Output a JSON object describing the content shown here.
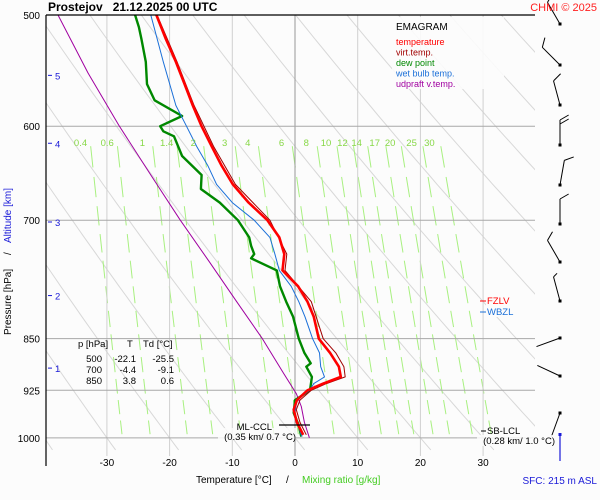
{
  "chart_data": {
    "type": "line",
    "title": "Prostejov   21.12.2025 00 UTC",
    "copyright": "CHMI © 2025",
    "diagram_type": "EMAGRAM",
    "xlabel": "Temperature [°C]",
    "xlabel_separator": "/",
    "xlabel2": "Mixing ratio [g/kg]",
    "ylabel": "Pressure [hPa]",
    "ylabel_separator": "/",
    "ylabel2": "Altitude [km]",
    "xlim": [
      -40,
      38
    ],
    "ylim": [
      1000,
      500
    ],
    "x_ticks": [
      -30,
      -20,
      -10,
      0,
      10,
      20,
      30
    ],
    "pressure_ticks": [
      500,
      600,
      700,
      850,
      925,
      1000
    ],
    "altitude_ticks": [
      {
        "km": 5,
        "p": 552
      },
      {
        "km": 4,
        "p": 617
      },
      {
        "km": 3,
        "p": 702
      },
      {
        "km": 2,
        "p": 792
      },
      {
        "km": 1,
        "p": 892
      }
    ],
    "mixing_ratio_labels": [
      "0.4",
      "0.6",
      "1",
      "1.4",
      "2",
      "3",
      "4",
      "6",
      "8",
      "10",
      "12",
      "14",
      "17",
      "20",
      "25",
      "30"
    ],
    "legend": [
      {
        "label": "temperature",
        "color": "#ff0000"
      },
      {
        "label": "virt.temp.",
        "color": "#a00000"
      },
      {
        "label": "dew point",
        "color": "#008800"
      },
      {
        "label": "wet bulb temp.",
        "color": "#1a6fd8"
      },
      {
        "label": "udpraft v.temp.",
        "color": "#a000a0"
      }
    ],
    "legend_position": "top-right",
    "series": [
      {
        "name": "temperature",
        "points": [
          [
            500,
            -22.1
          ],
          [
            520,
            -20.6
          ],
          [
            540,
            -19.0
          ],
          [
            560,
            -17.6
          ],
          [
            580,
            -16.3
          ],
          [
            600,
            -14.9
          ],
          [
            620,
            -13.3
          ],
          [
            640,
            -11.7
          ],
          [
            660,
            -9.9
          ],
          [
            680,
            -7.4
          ],
          [
            700,
            -4.4
          ],
          [
            720,
            -2.5
          ],
          [
            740,
            -1.7
          ],
          [
            760,
            -2.0
          ],
          [
            780,
            0.5
          ],
          [
            800,
            2.0
          ],
          [
            820,
            3.0
          ],
          [
            850,
            3.8
          ],
          [
            870,
            5.6
          ],
          [
            890,
            7.0
          ],
          [
            905,
            7.3
          ],
          [
            915,
            4.5
          ],
          [
            925,
            2.0
          ],
          [
            940,
            0.3
          ],
          [
            955,
            -0.2
          ],
          [
            975,
            0.3
          ],
          [
            995,
            1.3
          ]
        ]
      },
      {
        "name": "virt.temp.",
        "points": [
          [
            500,
            -22.0
          ],
          [
            540,
            -18.8
          ],
          [
            580,
            -16.1
          ],
          [
            620,
            -13.0
          ],
          [
            660,
            -9.5
          ],
          [
            700,
            -4.0
          ],
          [
            740,
            -1.3
          ],
          [
            760,
            -1.6
          ],
          [
            800,
            2.6
          ],
          [
            850,
            4.5
          ],
          [
            870,
            6.5
          ],
          [
            890,
            7.8
          ],
          [
            905,
            8.0
          ],
          [
            915,
            5.0
          ],
          [
            925,
            2.6
          ],
          [
            940,
            0.8
          ],
          [
            955,
            0.2
          ],
          [
            975,
            0.8
          ],
          [
            995,
            1.8
          ]
        ]
      },
      {
        "name": "dew point",
        "points": [
          [
            500,
            -25.5
          ],
          [
            510,
            -24.9
          ],
          [
            520,
            -24.5
          ],
          [
            540,
            -23.8
          ],
          [
            560,
            -23.6
          ],
          [
            575,
            -22.4
          ],
          [
            590,
            -18.0
          ],
          [
            600,
            -21.5
          ],
          [
            605,
            -21.0
          ],
          [
            610,
            -19.3
          ],
          [
            630,
            -18.0
          ],
          [
            650,
            -14.9
          ],
          [
            665,
            -15.0
          ],
          [
            680,
            -12.0
          ],
          [
            700,
            -9.1
          ],
          [
            720,
            -7.3
          ],
          [
            730,
            -7.0
          ],
          [
            740,
            -6.5
          ],
          [
            745,
            -7.0
          ],
          [
            760,
            -2.9
          ],
          [
            780,
            -2.4
          ],
          [
            800,
            -1.4
          ],
          [
            820,
            -0.3
          ],
          [
            850,
            0.6
          ],
          [
            870,
            1.5
          ],
          [
            885,
            2.5
          ],
          [
            890,
            1.8
          ],
          [
            905,
            2.7
          ],
          [
            925,
            2.4
          ],
          [
            940,
            0.0
          ],
          [
            960,
            -0.2
          ],
          [
            980,
            0.6
          ],
          [
            998,
            1.0
          ]
        ]
      },
      {
        "name": "wet bulb temp.",
        "points": [
          [
            500,
            -23.0
          ],
          [
            540,
            -21.0
          ],
          [
            580,
            -19.0
          ],
          [
            600,
            -17.3
          ],
          [
            620,
            -15.7
          ],
          [
            640,
            -13.9
          ],
          [
            660,
            -12.5
          ],
          [
            680,
            -10.0
          ],
          [
            700,
            -6.5
          ],
          [
            720,
            -4.0
          ],
          [
            740,
            -3.2
          ],
          [
            760,
            -2.5
          ],
          [
            780,
            -0.6
          ],
          [
            800,
            0.6
          ],
          [
            820,
            1.6
          ],
          [
            850,
            2.8
          ],
          [
            870,
            3.9
          ],
          [
            890,
            4.1
          ],
          [
            905,
            4.7
          ],
          [
            915,
            3.0
          ],
          [
            925,
            2.3
          ],
          [
            940,
            0.3
          ],
          [
            960,
            0.0
          ],
          [
            980,
            0.5
          ],
          [
            998,
            1.1
          ]
        ]
      },
      {
        "name": "udpraft v.temp.",
        "points": [
          [
            500,
            -37.8
          ],
          [
            550,
            -33.0
          ],
          [
            600,
            -28.0
          ],
          [
            650,
            -23.0
          ],
          [
            700,
            -18.3
          ],
          [
            750,
            -13.6
          ],
          [
            800,
            -9.3
          ],
          [
            850,
            -5.2
          ],
          [
            900,
            -1.8
          ],
          [
            930,
            0.2
          ],
          [
            950,
            1.0
          ],
          [
            975,
            1.5
          ],
          [
            1000,
            2.3
          ]
        ]
      }
    ],
    "table": {
      "headers": [
        "p [hPa]",
        "T",
        "Td [°C]"
      ],
      "rows": [
        [
          "500",
          "-22.1",
          "-25.5"
        ],
        [
          "700",
          "-4.4",
          "-9.1"
        ],
        [
          "850",
          "3.8",
          "0.6"
        ]
      ]
    },
    "level_markers": [
      {
        "label": "FZLV",
        "color": "#ff0000",
        "p": 790
      },
      {
        "label": "WBZL",
        "color": "#1a6fd8",
        "p": 805
      }
    ],
    "annotations": [
      {
        "name": "ML-CCL",
        "label": "ML-CCL",
        "detail": "(0.35 km/ 0.7 °C)",
        "p": 968
      },
      {
        "name": "SB-LCL",
        "label": "SB-LCL",
        "detail": "(0.28 km/ 1.0 °C)",
        "p": 975
      }
    ],
    "wind_barbs": [
      {
        "p": 510,
        "dir": 330,
        "speed": 5
      },
      {
        "p": 545,
        "dir": 315,
        "speed": 10
      },
      {
        "p": 585,
        "dir": 345,
        "speed": 10
      },
      {
        "p": 625,
        "dir": 360,
        "speed": 20
      },
      {
        "p": 665,
        "dir": 10,
        "speed": 10
      },
      {
        "p": 705,
        "dir": 360,
        "speed": 10
      },
      {
        "p": 750,
        "dir": 330,
        "speed": 10
      },
      {
        "p": 795,
        "dir": 345,
        "speed": 5
      },
      {
        "p": 850,
        "dir": 250,
        "speed": 0
      },
      {
        "p": 900,
        "dir": 295,
        "speed": 0
      },
      {
        "p": 955,
        "dir": 200,
        "speed": 0
      }
    ],
    "surface_label": "SFC: 215 m ASL",
    "surface_pressure": 993
  }
}
